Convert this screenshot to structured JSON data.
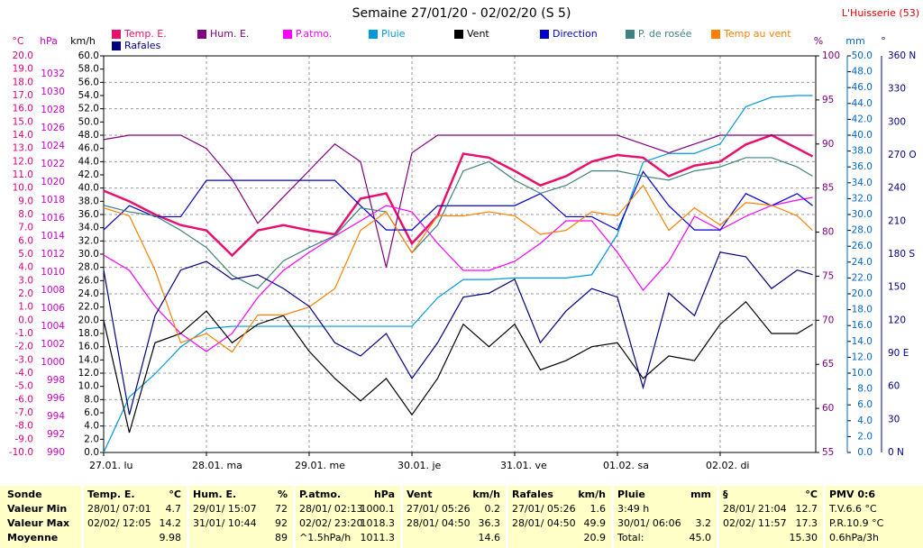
{
  "chart_data": {
    "type": "line",
    "title": "Semaine 27/01/20 - 02/02/20 (S 5)",
    "station": "L'Huisserie (53)",
    "xlim": [
      0,
      6.93
    ],
    "xticks": [
      {
        "value": 0,
        "label": "27.01. lu"
      },
      {
        "value": 1,
        "label": "28.01. ma"
      },
      {
        "value": 2,
        "label": "29.01. me"
      },
      {
        "value": 3,
        "label": "30.01. je"
      },
      {
        "value": 4,
        "label": "31.01. ve"
      },
      {
        "value": 5,
        "label": "01.02. sa"
      },
      {
        "value": 6,
        "label": "02.02. di"
      }
    ],
    "grid": true,
    "axes": {
      "temp": {
        "unit": "°C",
        "color": "#e0007f",
        "lim": [
          -10,
          20
        ],
        "ticks": [
          {
            "value": -10,
            "label": "-10.0"
          },
          {
            "value": -9,
            "label": "-9.0"
          },
          {
            "value": -8,
            "label": "-8.0"
          },
          {
            "value": -7,
            "label": "-7.0"
          },
          {
            "value": -6,
            "label": "-6.0"
          },
          {
            "value": -5,
            "label": "-5.0"
          },
          {
            "value": -4,
            "label": "-4.0"
          },
          {
            "value": -3,
            "label": "-3.0"
          },
          {
            "value": -2,
            "label": "-2.0"
          },
          {
            "value": -1,
            "label": "-1.0"
          },
          {
            "value": 0,
            "label": "0.0"
          },
          {
            "value": 1,
            "label": "1.0"
          },
          {
            "value": 2,
            "label": "2.0"
          },
          {
            "value": 3,
            "label": "3.0"
          },
          {
            "value": 4,
            "label": "4.0"
          },
          {
            "value": 5,
            "label": "5.0"
          },
          {
            "value": 6,
            "label": "6.0"
          },
          {
            "value": 7,
            "label": "7.0"
          },
          {
            "value": 8,
            "label": "8.0"
          },
          {
            "value": 9,
            "label": "9.0"
          },
          {
            "value": 10,
            "label": "10.0"
          },
          {
            "value": 11,
            "label": "11.0"
          },
          {
            "value": 12,
            "label": "12.0"
          },
          {
            "value": 13,
            "label": "13.0"
          },
          {
            "value": 14,
            "label": "14.0"
          },
          {
            "value": 15,
            "label": "15.0"
          },
          {
            "value": 16,
            "label": "16.0"
          },
          {
            "value": 17,
            "label": "17.0"
          },
          {
            "value": 18,
            "label": "18.0"
          },
          {
            "value": 19,
            "label": "19.0"
          },
          {
            "value": 20,
            "label": "20.0"
          }
        ]
      },
      "press": {
        "unit": "hPa",
        "color": "#cc00cc",
        "lim": [
          990,
          1034
        ],
        "ticks": [
          990,
          992,
          994,
          996,
          998,
          1000,
          1002,
          1004,
          1006,
          1008,
          1010,
          1012,
          1014,
          1016,
          1018,
          1020,
          1022,
          1024,
          1026,
          1028,
          1030,
          1032
        ]
      },
      "wind": {
        "unit": "km/h",
        "color": "#000000",
        "lim": [
          0,
          60
        ],
        "ticks": [
          {
            "value": 0,
            "label": "0.0"
          },
          {
            "value": 2,
            "label": "2.0"
          },
          {
            "value": 4,
            "label": "4.0"
          },
          {
            "value": 6,
            "label": "6.0"
          },
          {
            "value": 8,
            "label": "8.0"
          },
          {
            "value": 10,
            "label": "10.0"
          },
          {
            "value": 12,
            "label": "12.0"
          },
          {
            "value": 14,
            "label": "14.0"
          },
          {
            "value": 16,
            "label": "16.0"
          },
          {
            "value": 18,
            "label": "18.0"
          },
          {
            "value": 20,
            "label": "20.0"
          },
          {
            "value": 22,
            "label": "22.0"
          },
          {
            "value": 24,
            "label": "24.0"
          },
          {
            "value": 26,
            "label": "26.0"
          },
          {
            "value": 28,
            "label": "28.0"
          },
          {
            "value": 30,
            "label": "30.0"
          },
          {
            "value": 32,
            "label": "32.0"
          },
          {
            "value": 34,
            "label": "34.0"
          },
          {
            "value": 36,
            "label": "36.0"
          },
          {
            "value": 38,
            "label": "38.0"
          },
          {
            "value": 40,
            "label": "40.0"
          },
          {
            "value": 42,
            "label": "42.0"
          },
          {
            "value": 44,
            "label": "44.0"
          },
          {
            "value": 46,
            "label": "46.0"
          },
          {
            "value": 48,
            "label": "48.0"
          },
          {
            "value": 50,
            "label": "50.0"
          },
          {
            "value": 52,
            "label": "52.0"
          },
          {
            "value": 54,
            "label": "54.0"
          },
          {
            "value": 56,
            "label": "56.0"
          },
          {
            "value": 58,
            "label": "58.0"
          },
          {
            "value": 60,
            "label": "60.0"
          }
        ]
      },
      "hum": {
        "unit": "%",
        "color": "#800080",
        "lim": [
          55,
          100
        ],
        "ticks": [
          55,
          60,
          65,
          70,
          75,
          80,
          85,
          90,
          95,
          100
        ]
      },
      "rain": {
        "unit": "mm",
        "color": "#0066cc",
        "lim": [
          0,
          50
        ],
        "ticks": [
          {
            "value": 0,
            "label": "0.0"
          },
          {
            "value": 2,
            "label": "2.0"
          },
          {
            "value": 4,
            "label": "4.0"
          },
          {
            "value": 6,
            "label": "6.0"
          },
          {
            "value": 8,
            "label": "8.0"
          },
          {
            "value": 10,
            "label": "10.0"
          },
          {
            "value": 12,
            "label": "12.0"
          },
          {
            "value": 14,
            "label": "14.0"
          },
          {
            "value": 16,
            "label": "16.0"
          },
          {
            "value": 18,
            "label": "18.0"
          },
          {
            "value": 20,
            "label": "20.0"
          },
          {
            "value": 22,
            "label": "22.0"
          },
          {
            "value": 24,
            "label": "24.0"
          },
          {
            "value": 26,
            "label": "26.0"
          },
          {
            "value": 28,
            "label": "28.0"
          },
          {
            "value": 30,
            "label": "30.0"
          },
          {
            "value": 32,
            "label": "32.0"
          },
          {
            "value": 34,
            "label": "34.0"
          },
          {
            "value": 36,
            "label": "36.0"
          },
          {
            "value": 38,
            "label": "38.0"
          },
          {
            "value": 40,
            "label": "40.0"
          },
          {
            "value": 42,
            "label": "42.0"
          },
          {
            "value": 44,
            "label": "44.0"
          },
          {
            "value": 46,
            "label": "46.0"
          },
          {
            "value": 48,
            "label": "48.0"
          },
          {
            "value": 50,
            "label": "50.0"
          }
        ]
      },
      "dir": {
        "unit": "°",
        "color": "#000080",
        "lim": [
          0,
          360
        ],
        "ticks": [
          {
            "value": 0,
            "label": "0 N"
          },
          30,
          60,
          {
            "value": 90,
            "label": "90 E"
          },
          120,
          150,
          {
            "value": 180,
            "label": "180 S"
          },
          210,
          240,
          {
            "value": 270,
            "label": "270 O"
          },
          300,
          330,
          {
            "value": 360,
            "label": "360 N"
          }
        ]
      }
    },
    "x": [
      0,
      0.25,
      0.5,
      0.75,
      1,
      1.25,
      1.5,
      1.75,
      2,
      2.25,
      2.5,
      2.75,
      3,
      3.25,
      3.5,
      3.75,
      4,
      4.25,
      4.5,
      4.75,
      5,
      5.25,
      5.5,
      5.75,
      6,
      6.25,
      6.5,
      6.75,
      6.9
    ],
    "series": [
      {
        "name": "Temp. E.",
        "color": "#e8106c",
        "axis": "temp",
        "values": [
          9.8,
          9.0,
          8.0,
          7.2,
          6.8,
          4.9,
          6.8,
          7.2,
          6.8,
          6.5,
          9.2,
          9.6,
          5.8,
          7.9,
          12.6,
          12.3,
          11.3,
          10.2,
          10.9,
          12.0,
          12.5,
          12.3,
          10.9,
          11.7,
          12.0,
          13.3,
          14.0,
          13.0,
          12.4
        ]
      },
      {
        "name": "Hum. E.",
        "color": "#800080",
        "axis": "hum",
        "values": [
          90.5,
          91,
          91,
          91,
          89.5,
          86,
          81,
          84,
          87,
          90,
          88,
          76,
          89,
          91,
          91,
          91,
          91,
          91,
          91,
          91,
          91,
          90,
          89,
          90,
          91,
          91,
          91,
          91,
          91
        ]
      },
      {
        "name": "P.atmo.",
        "color": "#ff00ff",
        "axis": "press",
        "values": [
          1011.9,
          1010.2,
          1006.2,
          1003.2,
          1001.2,
          1003.2,
          1007.2,
          1010.2,
          1012.2,
          1014.0,
          1015.7,
          1017.4,
          1016.7,
          1013.2,
          1010.2,
          1010.2,
          1011.2,
          1013.2,
          1015.7,
          1015.7,
          1012.2,
          1008.0,
          1011.2,
          1016.2,
          1014.7,
          1016.2,
          1017.4,
          1018.0,
          1018.3
        ]
      },
      {
        "name": "Pluie",
        "color": "#0099dd",
        "axis": "rain",
        "values": [
          0,
          7.0,
          9.9,
          13.3,
          15.6,
          15.9,
          15.9,
          15.9,
          15.9,
          15.9,
          15.9,
          15.9,
          15.9,
          19.5,
          21.8,
          21.8,
          22.0,
          22.0,
          22.0,
          22.4,
          27.5,
          36.6,
          37.7,
          37.7,
          38.9,
          43.6,
          44.8,
          45.0,
          45.0
        ]
      },
      {
        "name": "Vent",
        "color": "#000000",
        "axis": "wind",
        "values": [
          20,
          3,
          16.6,
          18,
          21.4,
          16.6,
          19.4,
          20.7,
          15.3,
          11.2,
          7.8,
          11.2,
          5.7,
          11.2,
          19.4,
          16,
          19.4,
          12.5,
          13.9,
          16,
          16.6,
          11.2,
          14.6,
          13.9,
          19.4,
          22.8,
          18,
          18,
          19.4
        ]
      },
      {
        "name": "Direction",
        "color": "#0000cc",
        "axis": "dir",
        "values": [
          202,
          224,
          214,
          214,
          247,
          247,
          247,
          247,
          247,
          247,
          224,
          202,
          202,
          224,
          224,
          224,
          224,
          235,
          214,
          214,
          202,
          255,
          224,
          202,
          202,
          235,
          224,
          235,
          224
        ]
      },
      {
        "name": "P. de rosée",
        "color": "#408080",
        "axis": "temp",
        "values": [
          8.7,
          8.2,
          7.9,
          6.8,
          5.5,
          3.4,
          2.4,
          4.5,
          5.5,
          6.4,
          8.5,
          8.2,
          5.1,
          7.2,
          11.3,
          12.0,
          10.6,
          9.6,
          10.2,
          11.3,
          11.3,
          10.9,
          10.6,
          11.3,
          11.6,
          12.3,
          12.3,
          11.6,
          10.9
        ]
      },
      {
        "name": "Temp au vent",
        "color": "#ff8000",
        "axis": "temp",
        "values": [
          8.5,
          7.9,
          3.8,
          -1.7,
          -1.0,
          -2.4,
          0.4,
          0.4,
          1.0,
          2.4,
          6.8,
          8.2,
          5.1,
          7.9,
          7.9,
          8.2,
          7.9,
          6.5,
          6.8,
          8.2,
          7.9,
          10.2,
          6.8,
          8.5,
          7.2,
          8.9,
          8.7,
          7.9,
          6.8
        ]
      },
      {
        "name": "Rafales",
        "color": "#000080",
        "axis": "wind",
        "values": [
          27.6,
          5.7,
          20.7,
          27.6,
          28.9,
          26.2,
          26.9,
          24.8,
          22.1,
          16.6,
          14.6,
          18,
          11.2,
          16.6,
          23.5,
          24.1,
          26.2,
          16.6,
          21.4,
          24.8,
          23.5,
          9.8,
          24.1,
          20.7,
          30.3,
          29.6,
          24.8,
          27.6,
          26.9
        ]
      }
    ]
  },
  "table": {
    "row_labels": [
      "Sonde",
      "Valeur Min",
      "Valeur Max",
      "Moyenne"
    ],
    "columns": [
      {
        "header": {
          "l": "Temp. E.",
          "r": "°C"
        },
        "rows": [
          {
            "l": "28/01/ 07:01",
            "r": "4.7"
          },
          {
            "l": "02/02/ 12:05",
            "r": "14.2"
          },
          {
            "r": "9.98"
          }
        ]
      },
      {
        "header": {
          "l": "Hum. E.",
          "r": "%"
        },
        "rows": [
          {
            "l": "29/01/ 15:07",
            "r": "72"
          },
          {
            "l": "31/01/ 10:44",
            "r": "92"
          },
          {
            "r": "89"
          }
        ]
      },
      {
        "header": {
          "l": "P.atmo.",
          "r": "hPa"
        },
        "rows": [
          {
            "l": "28/01/ 02:13",
            "r": "1000.1"
          },
          {
            "l": "02/02/ 23:20",
            "r": "1018.3"
          },
          {
            "l": "^1.5hPa/h",
            "r": "1011.3"
          }
        ]
      },
      {
        "header": {
          "l": "Vent",
          "r": "km/h"
        },
        "rows": [
          {
            "l": "27/01/ 05:26",
            "r": "0.2"
          },
          {
            "l": "28/01/ 04:50",
            "r": "36.3"
          },
          {
            "r": "14.6"
          }
        ]
      },
      {
        "header": {
          "l": "Rafales",
          "r": "km/h"
        },
        "rows": [
          {
            "l": "27/01/ 05:26",
            "r": "1.6"
          },
          {
            "l": "28/01/ 04:50",
            "r": "49.9"
          },
          {
            "r": "20.9"
          }
        ]
      },
      {
        "header": {
          "l": "Pluie",
          "r": "mm"
        },
        "rows": [
          {
            "l": "3:49 h"
          },
          {
            "l": "30/01/ 06:06",
            "r": "3.2"
          },
          {
            "l": "Total:",
            "r": "45.0"
          }
        ]
      },
      {
        "header": {
          "l": "§",
          "r": "°C"
        },
        "rows": [
          {
            "l": "28/01/ 21:04",
            "r": "12.7"
          },
          {
            "l": "02/02/ 11:57",
            "r": "17.3"
          },
          {
            "r": "15.30"
          }
        ]
      },
      {
        "header": {
          "l": "PMV 0:6"
        },
        "rows": [
          {
            "l": "T.V.6.6 °C"
          },
          {
            "l": "P.R.10.9 °C"
          },
          {
            "l": "0.6hPa/3h"
          }
        ]
      }
    ]
  }
}
